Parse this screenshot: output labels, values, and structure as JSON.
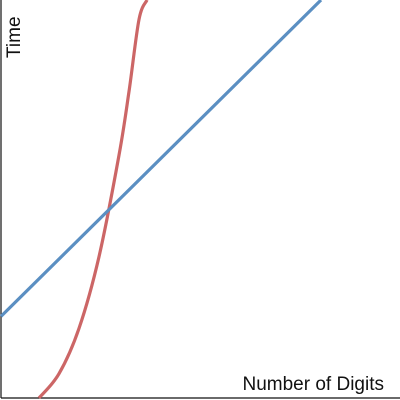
{
  "chart_data": {
    "type": "line",
    "xlabel": "Number of Digits",
    "ylabel": "Time",
    "xlim": [
      0,
      10
    ],
    "ylim": [
      0,
      10
    ],
    "grid": false,
    "legend": "none",
    "series": [
      {
        "color": "#cc6666",
        "x": [
          0.95,
          1.45,
          1.95,
          2.45,
          2.95,
          3.2,
          3.45,
          3.65
        ],
        "y": [
          0.0,
          0.61,
          1.75,
          3.55,
          6.1,
          7.7,
          9.51,
          10.0
        ]
      },
      {
        "color": "#5b8fc2",
        "x": [
          0.0,
          8.0
        ],
        "y": [
          2.05,
          10.0
        ]
      }
    ]
  },
  "colors": {
    "axis": "#111111",
    "background": "#ffffff"
  }
}
